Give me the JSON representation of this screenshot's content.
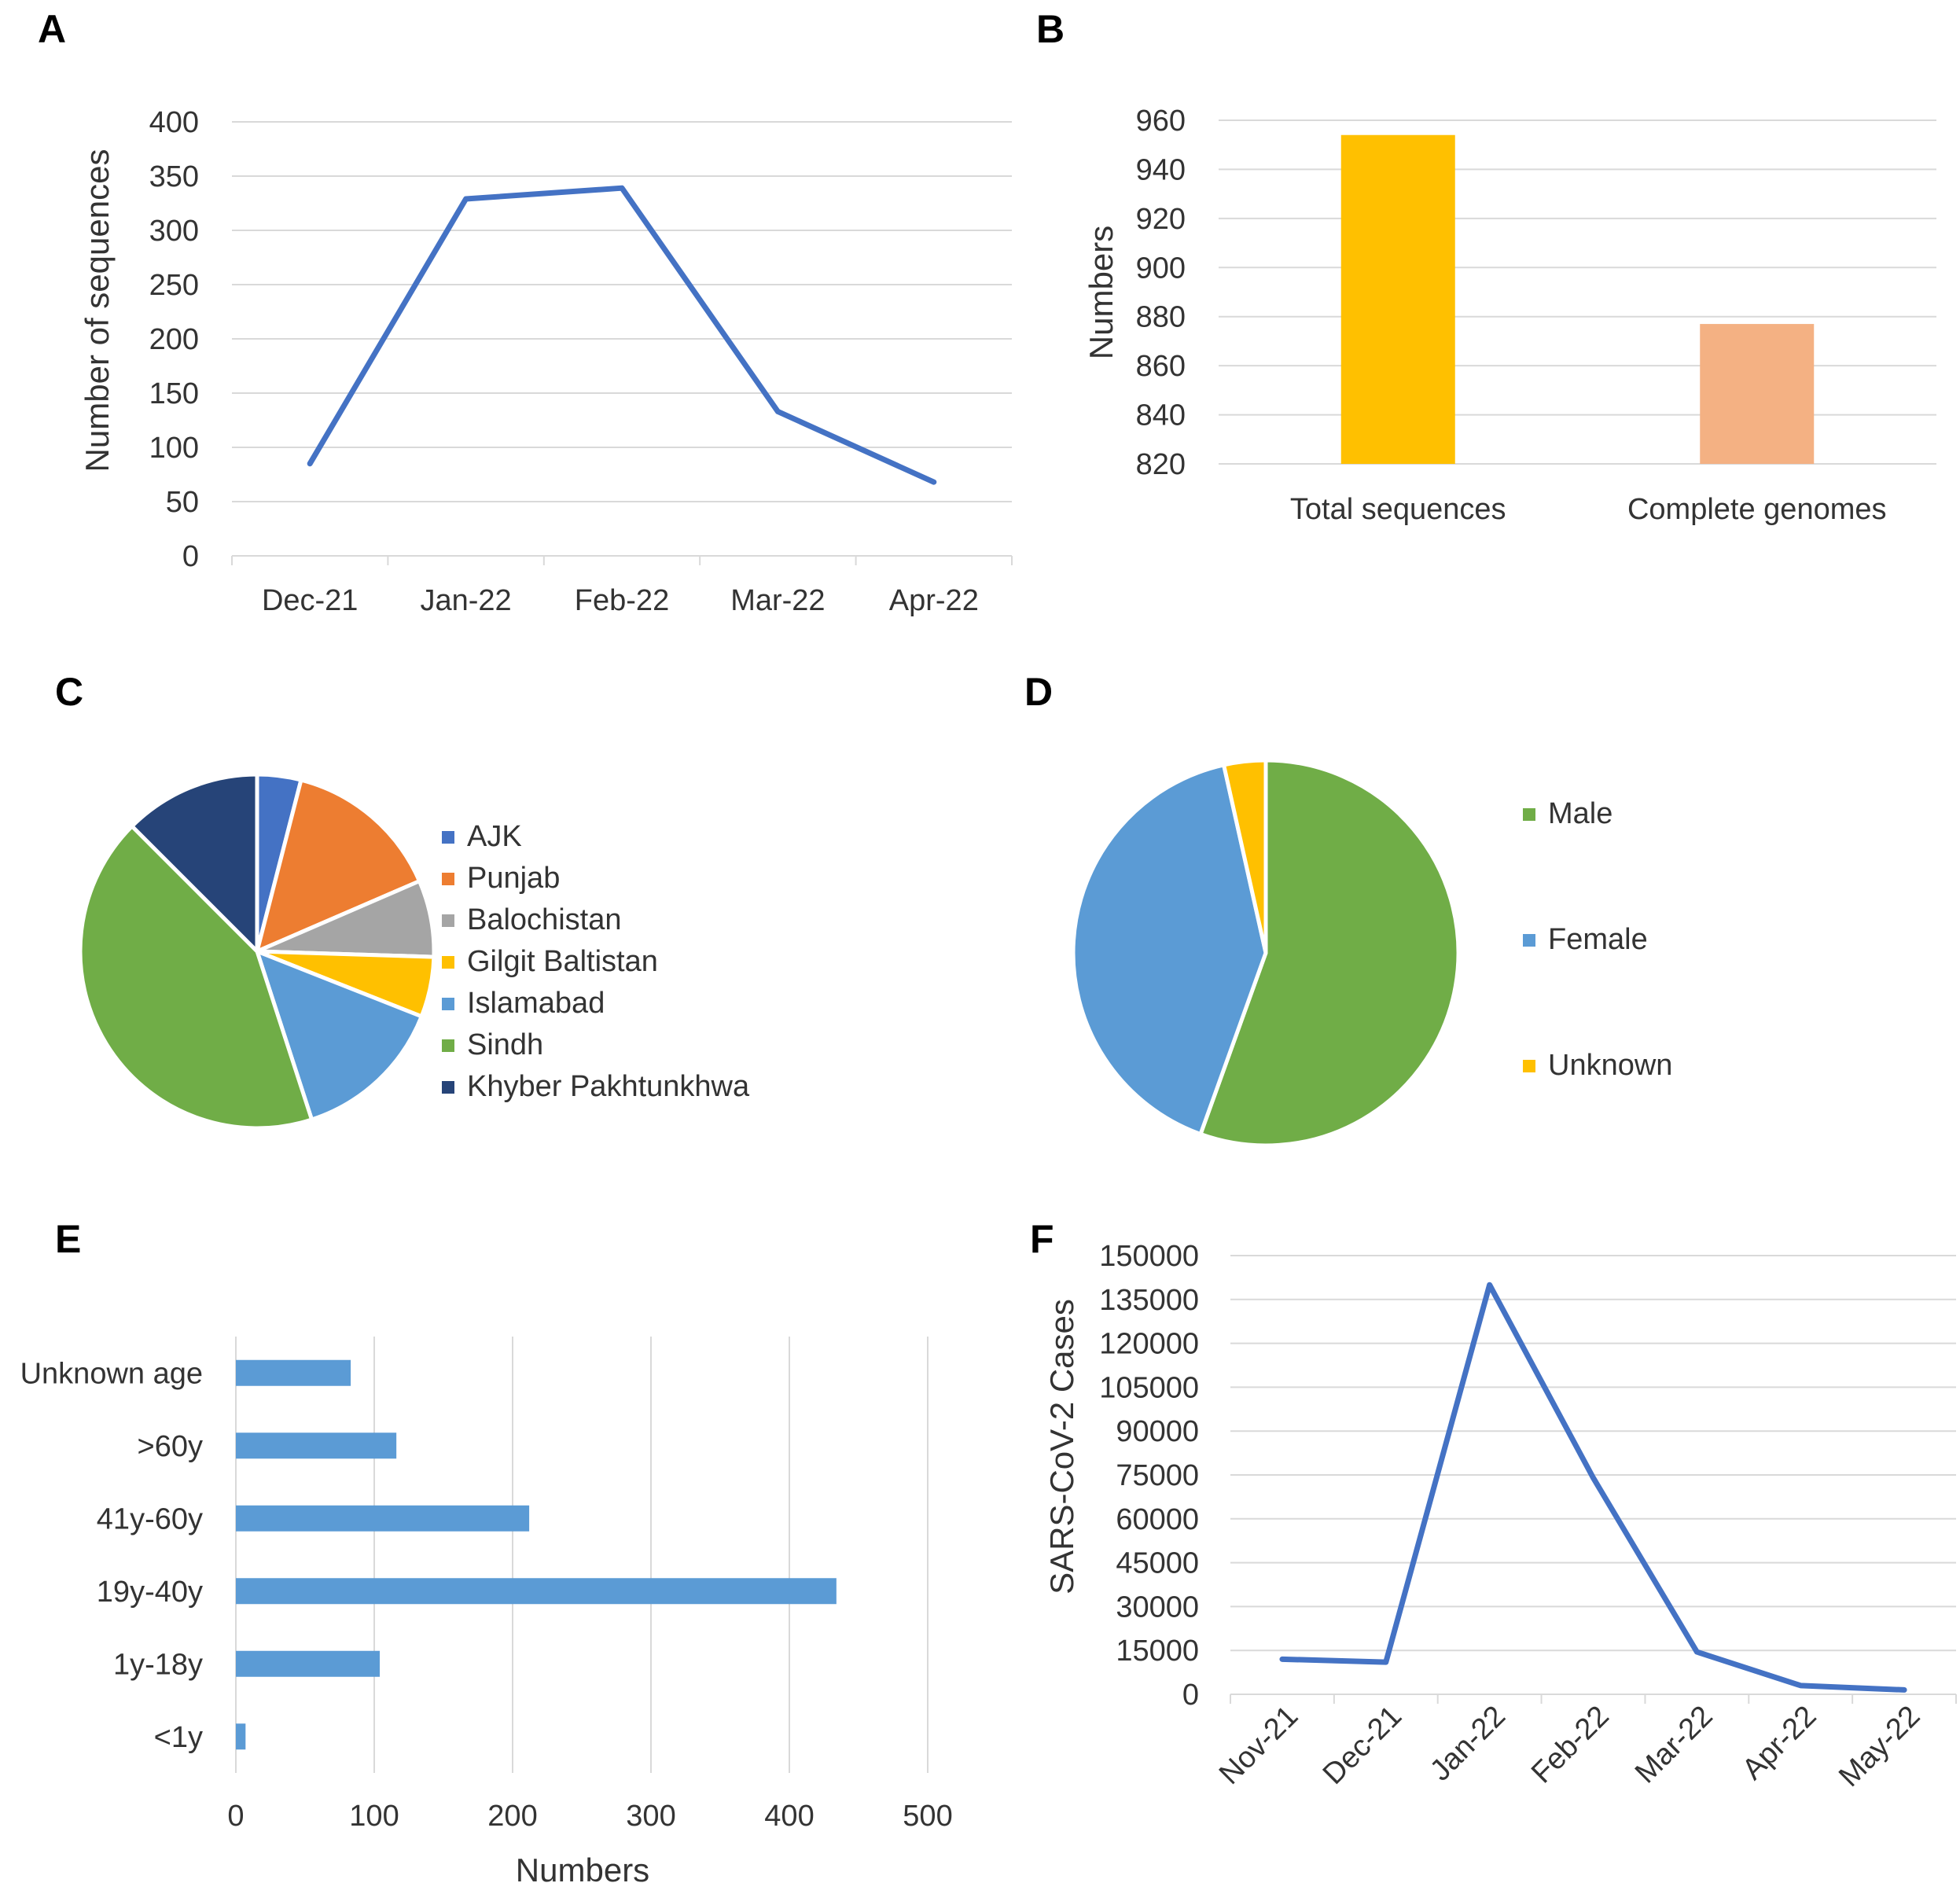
{
  "chart_data": [
    {
      "panel": "A",
      "type": "line",
      "categories": [
        "Dec-21",
        "Jan-22",
        "Feb-22",
        "Mar-22",
        "Apr-22"
      ],
      "values": [
        85,
        329,
        339,
        133,
        68
      ],
      "ylabel": "Number of sequences",
      "xlabel": "",
      "ylim": [
        0,
        400
      ],
      "yticks": [
        "0",
        "50",
        "100",
        "150",
        "200",
        "250",
        "300",
        "350",
        "400"
      ],
      "grid": true,
      "color": "#4472C4"
    },
    {
      "panel": "B",
      "type": "bar",
      "categories": [
        "Total sequences",
        "Complete genomes"
      ],
      "values": [
        954,
        877
      ],
      "colors": [
        "#FFC000",
        "#F4B183"
      ],
      "ylabel": "Numbers",
      "xlabel": "",
      "ylim": [
        820,
        960
      ],
      "yticks": [
        "820",
        "840",
        "860",
        "880",
        "900",
        "920",
        "940",
        "960"
      ],
      "grid": true
    },
    {
      "panel": "C",
      "type": "pie",
      "labels": [
        "AJK",
        "Punjab",
        "Balochistan",
        "Gilgit Baltistan",
        "Islamabad",
        "Sindh",
        "Khyber Pakhtunkhwa"
      ],
      "values": [
        4.0,
        14.5,
        7.0,
        5.5,
        14.0,
        42.5,
        12.5
      ],
      "colors": [
        "#4472C4",
        "#ED7D31",
        "#A5A5A5",
        "#FFC000",
        "#5B9BD5",
        "#70AD47",
        "#264478"
      ],
      "legend": "right"
    },
    {
      "panel": "D",
      "type": "pie",
      "labels": [
        "Male",
        "Female",
        "Unknown"
      ],
      "values": [
        55.5,
        41.0,
        3.5
      ],
      "colors": [
        "#70AD47",
        "#5B9BD5",
        "#FFC000"
      ],
      "legend": "right"
    },
    {
      "panel": "E",
      "type": "bar",
      "orientation": "horizontal",
      "categories": [
        "Unknown age",
        ">60y",
        "41y-60y",
        "19y-40y",
        "1y-18y",
        "<1y"
      ],
      "values": [
        83,
        116,
        212,
        434,
        104,
        7
      ],
      "xlabel": "Numbers",
      "ylabel": "",
      "xlim": [
        0,
        500
      ],
      "xticks": [
        "0",
        "100",
        "200",
        "300",
        "400",
        "500"
      ],
      "grid": true,
      "color": "#5B9BD5"
    },
    {
      "panel": "F",
      "type": "line",
      "categories": [
        "Nov-21",
        "Dec-21",
        "Jan-22",
        "Feb-22",
        "Mar-22",
        "Apr-22",
        "May-22"
      ],
      "values": [
        12000,
        11000,
        140000,
        74000,
        14500,
        3000,
        1500
      ],
      "ylabel": "SARS-CoV-2 Cases",
      "xlabel": "",
      "ylim": [
        0,
        150000
      ],
      "yticks": [
        "0",
        "15000",
        "30000",
        "45000",
        "60000",
        "75000",
        "90000",
        "105000",
        "120000",
        "135000",
        "150000"
      ],
      "grid": true,
      "color": "#4472C4"
    }
  ]
}
